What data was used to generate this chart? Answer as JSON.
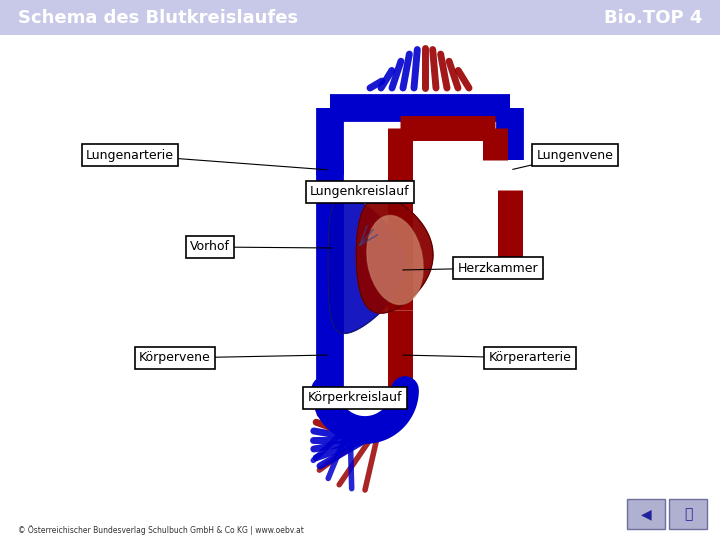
{
  "title_left": "Schema des Blutkreislaufes",
  "title_right": "Bio.TOP 4",
  "header_bg": "#c8c8e8",
  "main_bg": "#ffffff",
  "blue_color": "#0000cc",
  "dark_red_color": "#990000",
  "footer_text": "© Österreichischer Bundesverlag Schulbuch GmbH & Co KG | www.oebv.at",
  "blue_lw": 20,
  "red_lw": 18
}
